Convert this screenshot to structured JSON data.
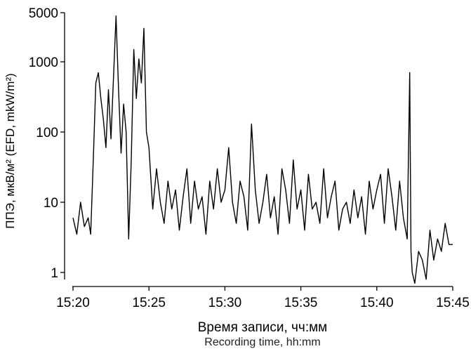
{
  "chart_data": {
    "type": "line",
    "xlabel": "Время записи, чч:мм",
    "xlabel_sub": "Recording time, hh:mm",
    "ylabel": "ППЭ, мкВ/м² (EFD, mkW/m²)",
    "xlim": [
      "15:20",
      "15:45"
    ],
    "ylim": [
      0.6,
      5000
    ],
    "yscale": "log",
    "grid": false,
    "x_ticks": [
      "15:20",
      "15:25",
      "15:30",
      "15:35",
      "15:40",
      "15:45"
    ],
    "y_ticks": [
      1,
      10,
      100,
      1000,
      5000
    ],
    "y_tick_labels": [
      "1",
      "10",
      "100",
      "1000",
      "5000"
    ],
    "line_color": "#000000",
    "series": [
      {
        "x": [
          "15:20:00",
          "15:20:15",
          "15:20:30",
          "15:20:45",
          "15:21:00",
          "15:21:10",
          "15:21:20",
          "15:21:30",
          "15:21:40",
          "15:21:50",
          "15:22:00",
          "15:22:10",
          "15:22:20",
          "15:22:30",
          "15:22:40",
          "15:22:50",
          "15:23:00",
          "15:23:10",
          "15:23:20",
          "15:23:30",
          "15:23:40",
          "15:23:50",
          "15:24:00",
          "15:24:10",
          "15:24:20",
          "15:24:30",
          "15:24:40",
          "15:24:50",
          "15:25:00",
          "15:25:15",
          "15:25:30",
          "15:25:45",
          "15:26:00",
          "15:26:15",
          "15:26:30",
          "15:26:45",
          "15:27:00",
          "15:27:15",
          "15:27:30",
          "15:27:45",
          "15:28:00",
          "15:28:15",
          "15:28:30",
          "15:28:45",
          "15:29:00",
          "15:29:15",
          "15:29:30",
          "15:29:45",
          "15:30:00",
          "15:30:15",
          "15:30:30",
          "15:30:45",
          "15:31:00",
          "15:31:15",
          "15:31:30",
          "15:31:45",
          "15:32:00",
          "15:32:15",
          "15:32:30",
          "15:32:45",
          "15:33:00",
          "15:33:15",
          "15:33:30",
          "15:33:45",
          "15:34:00",
          "15:34:15",
          "15:34:30",
          "15:34:45",
          "15:35:00",
          "15:35:15",
          "15:35:30",
          "15:35:45",
          "15:36:00",
          "15:36:15",
          "15:36:30",
          "15:36:45",
          "15:37:00",
          "15:37:15",
          "15:37:30",
          "15:37:45",
          "15:38:00",
          "15:38:15",
          "15:38:30",
          "15:38:45",
          "15:39:00",
          "15:39:15",
          "15:39:30",
          "15:39:45",
          "15:40:00",
          "15:40:15",
          "15:40:30",
          "15:40:45",
          "15:41:00",
          "15:41:15",
          "15:41:30",
          "15:41:45",
          "15:42:00",
          "15:42:10",
          "15:42:15",
          "15:42:20",
          "15:42:30",
          "15:42:45",
          "15:43:00",
          "15:43:15",
          "15:43:30",
          "15:43:45",
          "15:44:00",
          "15:44:15",
          "15:44:30",
          "15:44:45",
          "15:45:00"
        ],
        "y": [
          6,
          3.5,
          10,
          4.5,
          6,
          3.5,
          40,
          500,
          700,
          300,
          150,
          60,
          400,
          80,
          600,
          4500,
          400,
          50,
          250,
          100,
          3,
          40,
          1500,
          300,
          1100,
          500,
          3000,
          100,
          60,
          8,
          30,
          10,
          5,
          20,
          8,
          15,
          4,
          12,
          30,
          5,
          20,
          8,
          12,
          3.5,
          20,
          8,
          30,
          10,
          15,
          60,
          10,
          5,
          20,
          12,
          4,
          130,
          15,
          5,
          10,
          25,
          6,
          12,
          3.5,
          30,
          15,
          5,
          40,
          8,
          15,
          4,
          25,
          8,
          10,
          5,
          30,
          6,
          12,
          20,
          4,
          8,
          10,
          5,
          15,
          6,
          12,
          3.5,
          20,
          8,
          15,
          25,
          5,
          30,
          12,
          4,
          20,
          6,
          3,
          700,
          2,
          1,
          0.7,
          2,
          1.5,
          0.8,
          4,
          1.5,
          3,
          2,
          5,
          2.5,
          2.5
        ]
      }
    ]
  }
}
